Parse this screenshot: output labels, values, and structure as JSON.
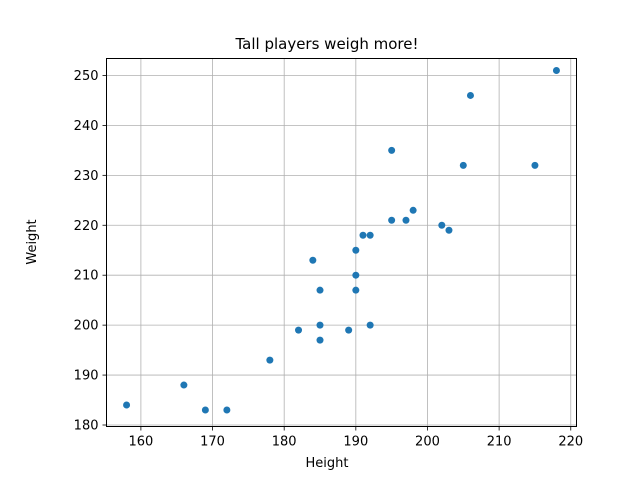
{
  "chart_data": {
    "type": "scatter",
    "title": "Tall players weigh more!",
    "xlabel": "Height",
    "ylabel": "Weight",
    "xlim": [
      155.2,
      220.8
    ],
    "ylim": [
      179.7,
      253.4
    ],
    "xticks": [
      160,
      170,
      180,
      190,
      200,
      210,
      220
    ],
    "yticks": [
      180,
      190,
      200,
      210,
      220,
      230,
      240,
      250
    ],
    "grid": true,
    "marker_color": "#1f77b4",
    "points": [
      {
        "x": 158,
        "y": 184
      },
      {
        "x": 166,
        "y": 188
      },
      {
        "x": 169,
        "y": 183
      },
      {
        "x": 172,
        "y": 183
      },
      {
        "x": 178,
        "y": 193
      },
      {
        "x": 182,
        "y": 199
      },
      {
        "x": 184,
        "y": 213
      },
      {
        "x": 185,
        "y": 207
      },
      {
        "x": 185,
        "y": 200
      },
      {
        "x": 185,
        "y": 197
      },
      {
        "x": 189,
        "y": 199
      },
      {
        "x": 190,
        "y": 215
      },
      {
        "x": 190,
        "y": 210
      },
      {
        "x": 190,
        "y": 207
      },
      {
        "x": 191,
        "y": 218
      },
      {
        "x": 192,
        "y": 218
      },
      {
        "x": 192,
        "y": 200
      },
      {
        "x": 195,
        "y": 235
      },
      {
        "x": 195,
        "y": 221
      },
      {
        "x": 197,
        "y": 221
      },
      {
        "x": 198,
        "y": 223
      },
      {
        "x": 202,
        "y": 220
      },
      {
        "x": 203,
        "y": 219
      },
      {
        "x": 205,
        "y": 232
      },
      {
        "x": 206,
        "y": 246
      },
      {
        "x": 215,
        "y": 232
      },
      {
        "x": 218,
        "y": 251
      }
    ]
  }
}
